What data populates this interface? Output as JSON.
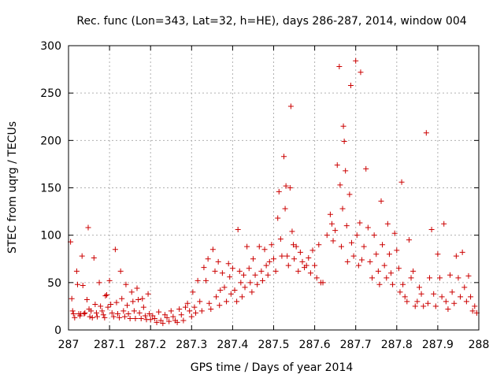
{
  "chart_data": {
    "type": "scatter",
    "title": "Rec. func (Lon=343, Lat=32, h=HE), days 286-287, 2014, window 004",
    "xlabel": "GPS time / Days of year 2014",
    "ylabel": "STEC from uqrg / TECUs",
    "xlim": [
      287,
      288
    ],
    "ylim": [
      0,
      300
    ],
    "grid": true,
    "x_ticks": [
      287,
      287.1,
      287.2,
      287.3,
      287.4,
      287.5,
      287.6,
      287.7,
      287.8,
      287.9,
      288
    ],
    "x_tick_labels": [
      "287",
      "287.1",
      "287.2",
      "287.3",
      "287.4",
      "287.5",
      "287.6",
      "287.7",
      "287.8",
      "287.9",
      "288"
    ],
    "y_ticks": [
      0,
      50,
      100,
      150,
      200,
      250,
      300
    ],
    "y_tick_labels": [
      "0",
      "50",
      "100",
      "150",
      "200",
      "250",
      "300"
    ],
    "marker": "plus",
    "color": "#cc0000",
    "series": [
      {
        "name": "STEC",
        "points": [
          [
            287.005,
            93
          ],
          [
            287.008,
            33
          ],
          [
            287.01,
            20
          ],
          [
            287.012,
            17
          ],
          [
            287.015,
            13
          ],
          [
            287.02,
            62
          ],
          [
            287.022,
            48
          ],
          [
            287.025,
            17
          ],
          [
            287.028,
            15
          ],
          [
            287.03,
            17
          ],
          [
            287.033,
            78
          ],
          [
            287.035,
            47
          ],
          [
            287.038,
            17
          ],
          [
            287.04,
            18
          ],
          [
            287.045,
            32
          ],
          [
            287.048,
            108
          ],
          [
            287.05,
            22
          ],
          [
            287.052,
            14
          ],
          [
            287.055,
            20
          ],
          [
            287.058,
            13
          ],
          [
            287.062,
            76
          ],
          [
            287.065,
            27
          ],
          [
            287.068,
            18
          ],
          [
            287.07,
            14
          ],
          [
            287.075,
            50
          ],
          [
            287.078,
            25
          ],
          [
            287.082,
            20
          ],
          [
            287.085,
            16
          ],
          [
            287.088,
            13
          ],
          [
            287.09,
            36
          ],
          [
            287.093,
            37
          ],
          [
            287.096,
            24
          ],
          [
            287.1,
            52
          ],
          [
            287.103,
            27
          ],
          [
            287.106,
            18
          ],
          [
            287.11,
            14
          ],
          [
            287.114,
            85
          ],
          [
            287.117,
            29
          ],
          [
            287.12,
            17
          ],
          [
            287.124,
            13
          ],
          [
            287.127,
            62
          ],
          [
            287.13,
            33
          ],
          [
            287.134,
            20
          ],
          [
            287.137,
            14
          ],
          [
            287.14,
            48
          ],
          [
            287.143,
            26
          ],
          [
            287.146,
            17
          ],
          [
            287.15,
            12
          ],
          [
            287.154,
            40
          ],
          [
            287.157,
            30
          ],
          [
            287.16,
            20
          ],
          [
            287.163,
            12
          ],
          [
            287.167,
            44
          ],
          [
            287.17,
            32
          ],
          [
            287.173,
            18
          ],
          [
            287.177,
            12
          ],
          [
            287.18,
            33
          ],
          [
            287.183,
            24
          ],
          [
            287.187,
            15
          ],
          [
            287.19,
            11
          ],
          [
            287.194,
            38
          ],
          [
            287.197,
            17
          ],
          [
            287.2,
            11
          ],
          [
            287.205,
            15
          ],
          [
            287.21,
            12
          ],
          [
            287.215,
            8
          ],
          [
            287.22,
            19
          ],
          [
            287.225,
            10
          ],
          [
            287.23,
            7
          ],
          [
            287.235,
            16
          ],
          [
            287.24,
            13
          ],
          [
            287.245,
            9
          ],
          [
            287.25,
            20
          ],
          [
            287.255,
            14
          ],
          [
            287.26,
            10
          ],
          [
            287.265,
            8
          ],
          [
            287.27,
            22
          ],
          [
            287.275,
            16
          ],
          [
            287.28,
            10
          ],
          [
            287.285,
            24
          ],
          [
            287.29,
            28
          ],
          [
            287.295,
            20
          ],
          [
            287.3,
            14
          ],
          [
            287.303,
            40
          ],
          [
            287.307,
            24
          ],
          [
            287.31,
            18
          ],
          [
            287.315,
            52
          ],
          [
            287.32,
            30
          ],
          [
            287.325,
            20
          ],
          [
            287.33,
            66
          ],
          [
            287.335,
            52
          ],
          [
            287.34,
            75
          ],
          [
            287.343,
            28
          ],
          [
            287.347,
            22
          ],
          [
            287.352,
            85
          ],
          [
            287.357,
            62
          ],
          [
            287.36,
            35
          ],
          [
            287.365,
            72
          ],
          [
            287.368,
            26
          ],
          [
            287.37,
            42
          ],
          [
            287.375,
            60
          ],
          [
            287.38,
            45
          ],
          [
            287.385,
            30
          ],
          [
            287.39,
            70
          ],
          [
            287.393,
            56
          ],
          [
            287.396,
            38
          ],
          [
            287.4,
            65
          ],
          [
            287.405,
            42
          ],
          [
            287.41,
            30
          ],
          [
            287.413,
            106
          ],
          [
            287.417,
            62
          ],
          [
            287.42,
            50
          ],
          [
            287.423,
            35
          ],
          [
            287.427,
            58
          ],
          [
            287.43,
            45
          ],
          [
            287.435,
            88
          ],
          [
            287.44,
            65
          ],
          [
            287.443,
            50
          ],
          [
            287.447,
            40
          ],
          [
            287.45,
            75
          ],
          [
            287.455,
            58
          ],
          [
            287.46,
            48
          ],
          [
            287.465,
            88
          ],
          [
            287.47,
            62
          ],
          [
            287.473,
            52
          ],
          [
            287.478,
            85
          ],
          [
            287.482,
            68
          ],
          [
            287.486,
            58
          ],
          [
            287.49,
            72
          ],
          [
            287.495,
            90
          ],
          [
            287.5,
            75
          ],
          [
            287.505,
            62
          ],
          [
            287.51,
            118
          ],
          [
            287.513,
            146
          ],
          [
            287.517,
            96
          ],
          [
            287.52,
            78
          ],
          [
            287.525,
            183
          ],
          [
            287.528,
            128
          ],
          [
            287.53,
            152
          ],
          [
            287.533,
            78
          ],
          [
            287.536,
            68
          ],
          [
            287.54,
            150
          ],
          [
            287.542,
            236
          ],
          [
            287.545,
            104
          ],
          [
            287.548,
            90
          ],
          [
            287.55,
            75
          ],
          [
            287.555,
            88
          ],
          [
            287.56,
            62
          ],
          [
            287.565,
            82
          ],
          [
            287.57,
            72
          ],
          [
            287.575,
            66
          ],
          [
            287.58,
            68
          ],
          [
            287.585,
            76
          ],
          [
            287.59,
            60
          ],
          [
            287.595,
            84
          ],
          [
            287.6,
            68
          ],
          [
            287.605,
            55
          ],
          [
            287.61,
            90
          ],
          [
            287.615,
            50
          ],
          [
            287.62,
            50
          ],
          [
            287.63,
            100
          ],
          [
            287.638,
            122
          ],
          [
            287.642,
            112
          ],
          [
            287.645,
            94
          ],
          [
            287.65,
            105
          ],
          [
            287.655,
            174
          ],
          [
            287.66,
            278
          ],
          [
            287.662,
            153
          ],
          [
            287.665,
            88
          ],
          [
            287.668,
            128
          ],
          [
            287.67,
            215
          ],
          [
            287.672,
            199
          ],
          [
            287.675,
            168
          ],
          [
            287.678,
            110
          ],
          [
            287.68,
            72
          ],
          [
            287.685,
            143
          ],
          [
            287.688,
            258
          ],
          [
            287.69,
            92
          ],
          [
            287.695,
            78
          ],
          [
            287.7,
            284
          ],
          [
            287.703,
            100
          ],
          [
            287.707,
            68
          ],
          [
            287.71,
            113
          ],
          [
            287.712,
            272
          ],
          [
            287.715,
            74
          ],
          [
            287.72,
            88
          ],
          [
            287.725,
            170
          ],
          [
            287.73,
            108
          ],
          [
            287.735,
            72
          ],
          [
            287.74,
            55
          ],
          [
            287.745,
            100
          ],
          [
            287.75,
            80
          ],
          [
            287.755,
            62
          ],
          [
            287.758,
            48
          ],
          [
            287.762,
            136
          ],
          [
            287.765,
            90
          ],
          [
            287.77,
            68
          ],
          [
            287.775,
            55
          ],
          [
            287.778,
            112
          ],
          [
            287.782,
            80
          ],
          [
            287.786,
            60
          ],
          [
            287.79,
            48
          ],
          [
            287.795,
            102
          ],
          [
            287.8,
            84
          ],
          [
            287.805,
            65
          ],
          [
            287.808,
            40
          ],
          [
            287.812,
            156
          ],
          [
            287.815,
            48
          ],
          [
            287.82,
            35
          ],
          [
            287.825,
            30
          ],
          [
            287.83,
            95
          ],
          [
            287.835,
            55
          ],
          [
            287.84,
            62
          ],
          [
            287.845,
            25
          ],
          [
            287.85,
            30
          ],
          [
            287.855,
            45
          ],
          [
            287.86,
            38
          ],
          [
            287.865,
            25
          ],
          [
            287.872,
            208
          ],
          [
            287.876,
            28
          ],
          [
            287.88,
            55
          ],
          [
            287.885,
            106
          ],
          [
            287.89,
            38
          ],
          [
            287.895,
            25
          ],
          [
            287.9,
            80
          ],
          [
            287.905,
            55
          ],
          [
            287.91,
            35
          ],
          [
            287.915,
            112
          ],
          [
            287.92,
            30
          ],
          [
            287.925,
            22
          ],
          [
            287.93,
            58
          ],
          [
            287.935,
            40
          ],
          [
            287.94,
            28
          ],
          [
            287.945,
            78
          ],
          [
            287.95,
            55
          ],
          [
            287.955,
            35
          ],
          [
            287.96,
            82
          ],
          [
            287.965,
            45
          ],
          [
            287.97,
            30
          ],
          [
            287.975,
            57
          ],
          [
            287.98,
            35
          ],
          [
            287.985,
            20
          ],
          [
            287.99,
            25
          ],
          [
            287.995,
            18
          ]
        ]
      }
    ]
  }
}
